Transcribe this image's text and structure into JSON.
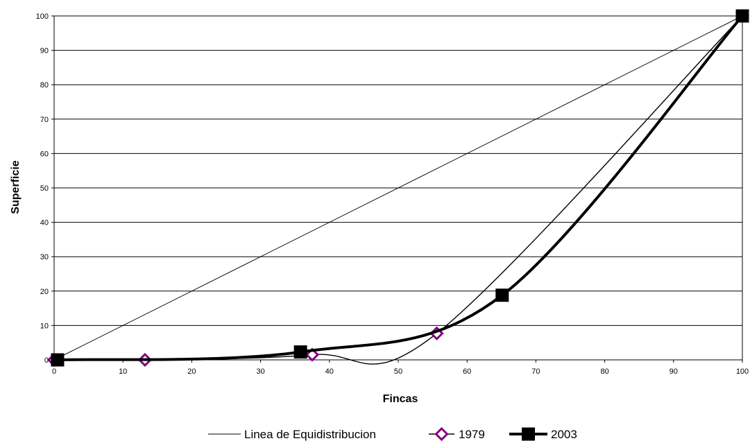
{
  "chart_data": {
    "type": "line",
    "xlabel": "Fincas",
    "ylabel": "Superficie",
    "xlim": [
      0,
      100
    ],
    "ylim": [
      0,
      100
    ],
    "x_ticks": [
      0,
      10,
      20,
      30,
      40,
      50,
      60,
      70,
      80,
      90,
      100
    ],
    "y_ticks": [
      0,
      10,
      20,
      30,
      40,
      50,
      60,
      70,
      80,
      90,
      100
    ],
    "grid": "horizontal",
    "legend_position": "bottom",
    "series": [
      {
        "name": "Linea de Equidistribucion",
        "color": "#000000",
        "marker": "none",
        "x": [
          0,
          100
        ],
        "y": [
          0,
          100
        ]
      },
      {
        "name": "1979",
        "color": "#000000",
        "marker": "diamond",
        "marker_color": "#800080",
        "x": [
          0,
          13.2,
          37.5,
          55.6,
          100
        ],
        "y": [
          0,
          0,
          1.5,
          7.7,
          100
        ]
      },
      {
        "name": "2003",
        "color": "#000000",
        "marker": "square",
        "marker_color": "#000000",
        "x": [
          0.5,
          35.8,
          65.1,
          100
        ],
        "y": [
          0,
          2.3,
          18.8,
          100
        ]
      }
    ]
  }
}
